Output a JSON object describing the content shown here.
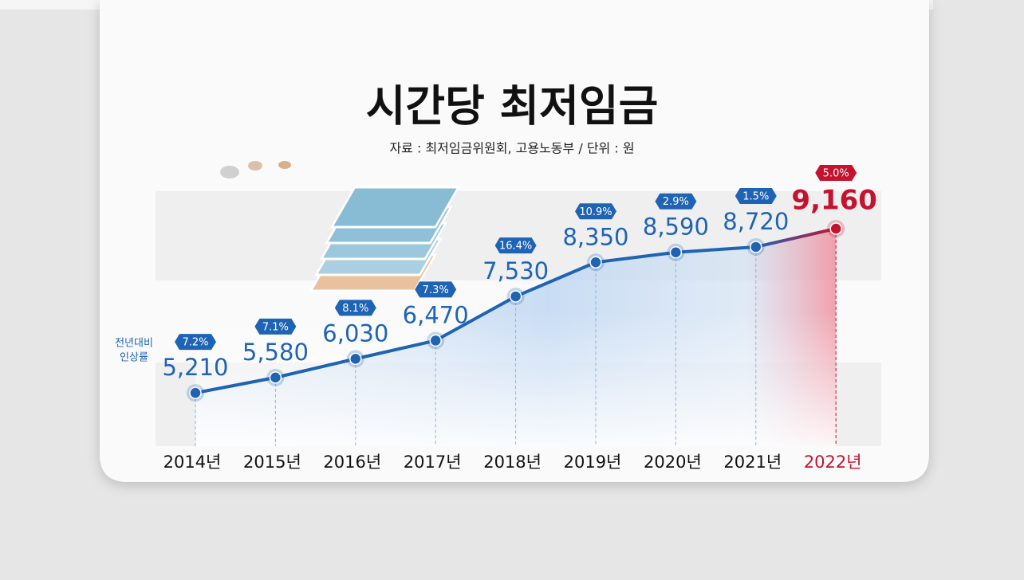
{
  "chart_data": {
    "type": "line",
    "title": "시간당 최저임금",
    "subtitle": "자료 : 최저임금위원회, 고용노동부 / 단위 : 원",
    "categories": [
      "2014년",
      "2015년",
      "2016년",
      "2017년",
      "2018년",
      "2019년",
      "2020년",
      "2021년",
      "2022년"
    ],
    "values": [
      5210,
      5580,
      6030,
      6470,
      7530,
      8350,
      8590,
      8720,
      9160
    ],
    "value_labels": [
      "5,210",
      "5,580",
      "6,030",
      "6,470",
      "7,530",
      "8,350",
      "8,590",
      "8,720",
      "9,160"
    ],
    "growth_title": [
      "전년대비",
      "인상률"
    ],
    "growth_rates": [
      7.2,
      7.1,
      8.1,
      7.3,
      16.4,
      10.9,
      2.9,
      1.5,
      5.0
    ],
    "growth_rate_labels": [
      "7.2%",
      "7.1%",
      "8.1%",
      "7.3%",
      "16.4%",
      "10.9%",
      "2.9%",
      "1.5%",
      "5.0%"
    ],
    "color": "#1f63b5",
    "highlight_color": "#c4122f",
    "ylim": [
      3930,
      10060
    ]
  }
}
